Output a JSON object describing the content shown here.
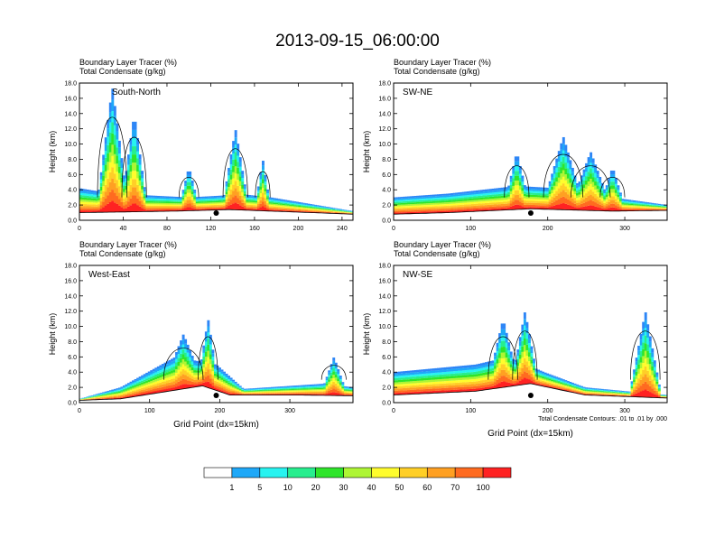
{
  "title": "2013-09-15_06:00:00",
  "chart_data": [
    {
      "type": "heatmap",
      "subtitle1": "Boundary Layer Tracer    (%)",
      "subtitle2": "Total Condensate    (g/kg)",
      "panel_label": "South-North",
      "ylabel": "Height (km)",
      "xlabel": "",
      "xlim": [
        0,
        250
      ],
      "ylim": [
        0,
        18
      ],
      "xticks": [
        "0",
        "40",
        "80",
        "120",
        "160",
        "200",
        "240"
      ],
      "xtick_values": [
        0,
        40,
        80,
        120,
        160,
        200,
        240
      ],
      "yticks": [
        "0.0",
        "2.0",
        "4.0",
        "6.0",
        "8.0",
        "10.0",
        "12.0",
        "14.0",
        "16.0",
        "18.0"
      ],
      "ytick_values": [
        0,
        2,
        4,
        6,
        8,
        10,
        12,
        14,
        16,
        18
      ],
      "marker_x": 125,
      "note": ""
    },
    {
      "type": "heatmap",
      "subtitle1": "Boundary Layer Tracer    (%)",
      "subtitle2": "Total Condensate    (g/kg)",
      "panel_label": "SW-NE",
      "ylabel": "Height (km)",
      "xlabel": "",
      "xlim": [
        0,
        355
      ],
      "ylim": [
        0,
        18
      ],
      "xticks": [
        "0",
        "100",
        "200",
        "300"
      ],
      "xtick_values": [
        0,
        100,
        200,
        300
      ],
      "yticks": [
        "0.0",
        "2.0",
        "4.0",
        "6.0",
        "8.0",
        "10.0",
        "12.0",
        "14.0",
        "16.0",
        "18.0"
      ],
      "ytick_values": [
        0,
        2,
        4,
        6,
        8,
        10,
        12,
        14,
        16,
        18
      ],
      "marker_x": 178,
      "note": ""
    },
    {
      "type": "heatmap",
      "subtitle1": "Boundary Layer Tracer    (%)",
      "subtitle2": "Total Condensate    (g/kg)",
      "panel_label": "West-East",
      "ylabel": "Height (km)",
      "xlabel": "Grid Point (dx=15km)",
      "xlim": [
        0,
        390
      ],
      "ylim": [
        0,
        18
      ],
      "xticks": [
        "0",
        "100",
        "200",
        "300"
      ],
      "xtick_values": [
        0,
        100,
        200,
        300
      ],
      "yticks": [
        "0.0",
        "2.0",
        "4.0",
        "6.0",
        "8.0",
        "10.0",
        "12.0",
        "14.0",
        "16.0",
        "18.0"
      ],
      "ytick_values": [
        0,
        2,
        4,
        6,
        8,
        10,
        12,
        14,
        16,
        18
      ],
      "marker_x": 195,
      "note": ""
    },
    {
      "type": "heatmap",
      "subtitle1": "Boundary Layer Tracer    (%)",
      "subtitle2": "Total Condensate    (g/kg)",
      "panel_label": "NW-SE",
      "ylabel": "Height (km)",
      "xlabel": "Grid Point (dx=15km)",
      "xlim": [
        0,
        355
      ],
      "ylim": [
        0,
        18
      ],
      "xticks": [
        "0",
        "100",
        "200",
        "300"
      ],
      "xtick_values": [
        0,
        100,
        200,
        300
      ],
      "yticks": [
        "0.0",
        "2.0",
        "4.0",
        "6.0",
        "8.0",
        "10.0",
        "12.0",
        "14.0",
        "16.0",
        "18.0"
      ],
      "ytick_values": [
        0,
        2,
        4,
        6,
        8,
        10,
        12,
        14,
        16,
        18
      ],
      "marker_x": 178,
      "note": "Total Condensate Contours: .01 to .01 by .000"
    }
  ],
  "colorbar": {
    "labels": [
      "1",
      "5",
      "10",
      "20",
      "30",
      "40",
      "50",
      "60",
      "70",
      "100"
    ],
    "colors": [
      "#ffffff",
      "#2e86f6",
      "#1ea8f8",
      "#27f3f0",
      "#27ee8e",
      "#2ee52a",
      "#aef534",
      "#fffc2d",
      "#ffcf27",
      "#ffa022",
      "#ff6b20",
      "#ff2222"
    ]
  }
}
